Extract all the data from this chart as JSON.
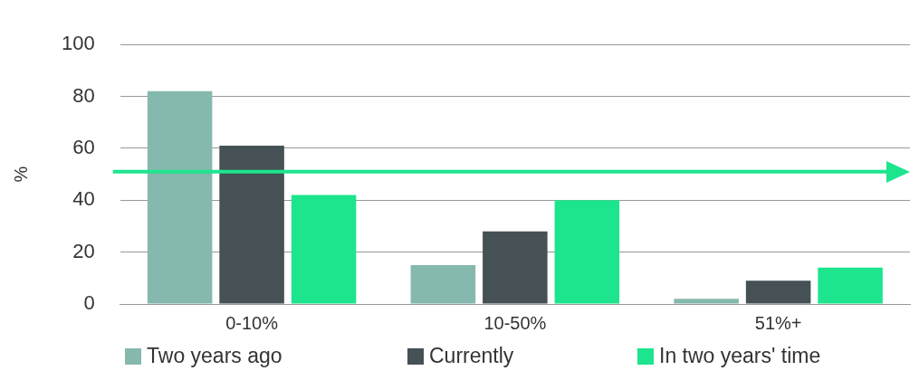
{
  "chart_data": {
    "type": "bar",
    "ylabel": "%",
    "categories": [
      "0-10%",
      "10-50%",
      "51%+"
    ],
    "series": [
      {
        "name": "Two years ago",
        "color": "#86b9ad",
        "values": [
          82,
          15,
          2
        ]
      },
      {
        "name": "Currently",
        "color": "#455155",
        "values": [
          61,
          28,
          9
        ]
      },
      {
        "name": "In two years' time",
        "color": "#1de58e",
        "values": [
          42,
          40,
          14
        ]
      }
    ],
    "ylim": [
      0,
      100
    ],
    "yticks": [
      0,
      20,
      40,
      60,
      80,
      100
    ],
    "grid": "y",
    "legend": "bottom",
    "ref_lines": [
      {
        "axis": "y",
        "value": 51,
        "color": "#1de58e"
      }
    ]
  }
}
